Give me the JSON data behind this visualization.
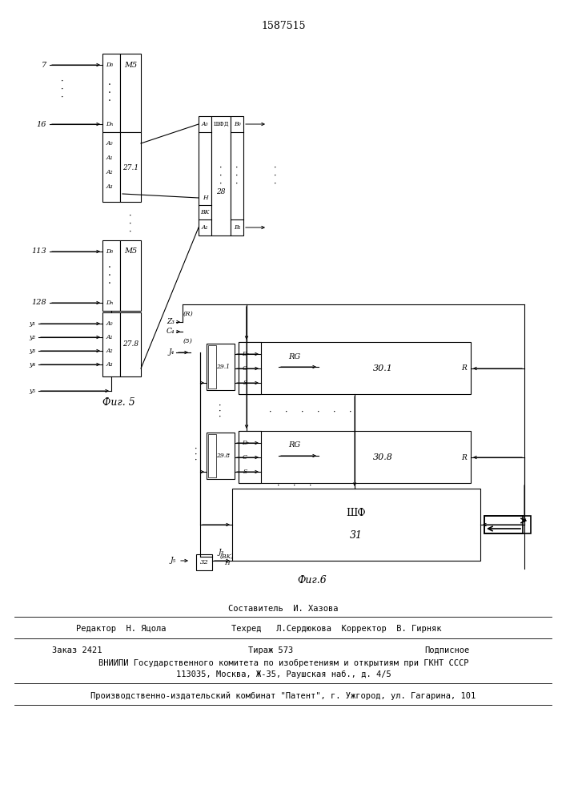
{
  "title": "1587515",
  "fig5_label": "Фиг. 5",
  "fig6_label": "Фиг.6",
  "footer_line1": "Составитель  И. Хазова",
  "footer_line2a": "Редактор  Н. Яцола",
  "footer_line2b": "Техред   Л.Сердюкова  Корректор  В. Гирняк",
  "footer_line3a": "Заказ 2421",
  "footer_line3b": "Тираж 573",
  "footer_line3c": "Подписное",
  "footer_line4": "ВНИИПИ Государственного комитета по изобретениям и открытиям при ГКНТ СССР",
  "footer_line5": "113035, Москва, Ж-35, Раушская наб., д. 4/5",
  "footer_line6": "Производственно-издательский комбинат \"Патент\", г. Ужгород, ул. Гагарина, 101",
  "bg_color": "#ffffff"
}
